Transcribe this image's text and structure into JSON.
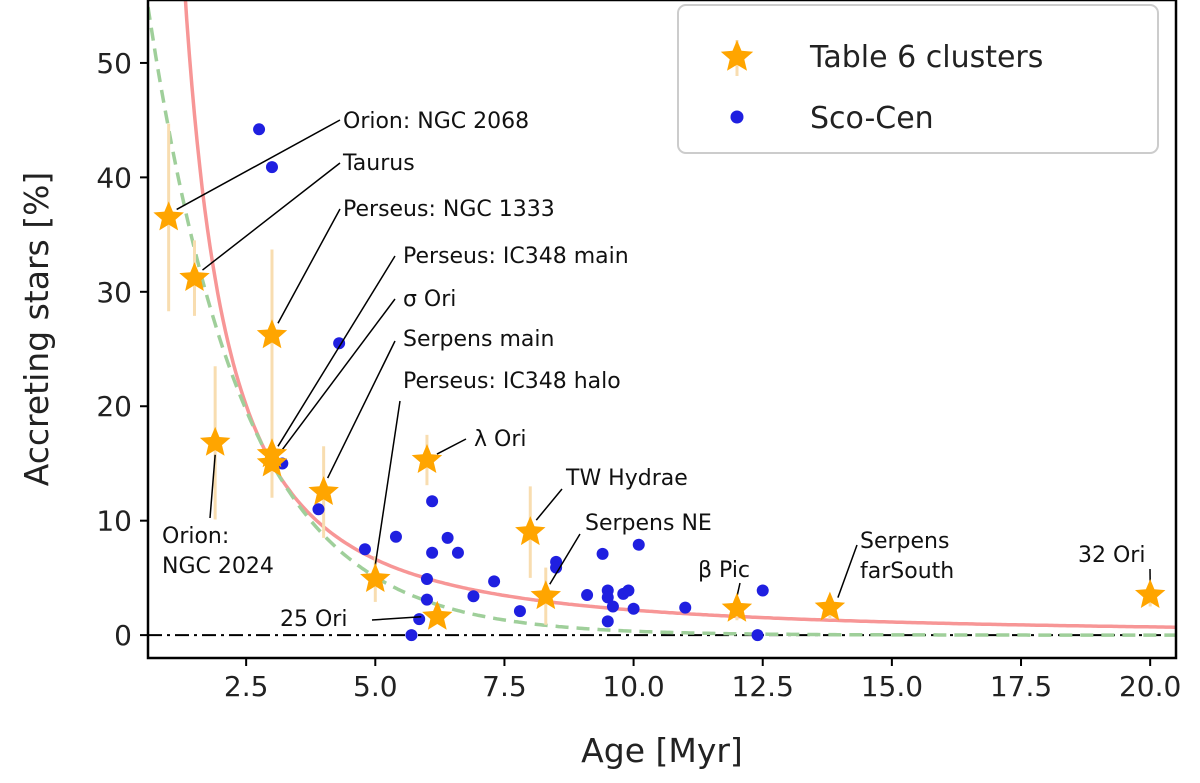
{
  "chart_data": {
    "type": "scatter",
    "xlabel": "Age [Myr]",
    "ylabel": "Accreting stars [%]",
    "xlim": [
      0.6,
      20.5
    ],
    "ylim": [
      -2,
      55.5
    ],
    "xticks": [
      "2.5",
      "5.0",
      "7.5",
      "10.0",
      "12.5",
      "15.0",
      "17.5",
      "20.0"
    ],
    "yticks": [
      "0",
      "10",
      "20",
      "30",
      "40",
      "50"
    ],
    "grid": false,
    "legend_position": "top-right",
    "legend": [
      {
        "label": "Table 6 clusters",
        "marker": "star",
        "color": "#FFA500"
      },
      {
        "label": "Sco-Cen",
        "marker": "circle",
        "color": "#1f1fe0"
      }
    ],
    "series": [
      {
        "name": "Table 6 clusters",
        "marker": "star",
        "color": "#FFA500",
        "errorbar_color": "#F8DDB0",
        "points": [
          {
            "x": 1.0,
            "y": 36.5,
            "err": 8.2,
            "label": "Orion: NGC 2068"
          },
          {
            "x": 1.5,
            "y": 31.2,
            "err": 3.3,
            "label": "Taurus"
          },
          {
            "x": 3.0,
            "y": 26.2,
            "err": 7.5,
            "label": "Perseus: NGC 1333"
          },
          {
            "x": 1.9,
            "y": 16.8,
            "err": 6.7,
            "label": "Orion: NGC 2024"
          },
          {
            "x": 3.0,
            "y": 15.8,
            "err": 3.5,
            "label": "Perseus: IC348 main"
          },
          {
            "x": 3.0,
            "y": 15.0,
            "err": 3.0,
            "label": "σ Ori"
          },
          {
            "x": 4.0,
            "y": 12.5,
            "err": 4.0,
            "label": "Serpens main"
          },
          {
            "x": 5.0,
            "y": 4.9,
            "err": 2.0,
            "label": "Perseus: IC348 halo"
          },
          {
            "x": 6.0,
            "y": 15.3,
            "err": 2.2,
            "label": "λ  Ori"
          },
          {
            "x": 6.2,
            "y": 1.6,
            "err": 0.6,
            "label": "25 Ori"
          },
          {
            "x": 8.0,
            "y": 9.0,
            "err": 4.0,
            "label": "TW Hydrae"
          },
          {
            "x": 8.3,
            "y": 3.4,
            "err": 2.5,
            "label": "Serpens NE"
          },
          {
            "x": 12.0,
            "y": 2.3,
            "err": 1.0,
            "label": "β Pic"
          },
          {
            "x": 13.8,
            "y": 2.4,
            "err": 1.0,
            "label": "Serpens farSouth"
          },
          {
            "x": 20.0,
            "y": 3.5,
            "err": 1.0,
            "label": "32 Ori"
          }
        ]
      },
      {
        "name": "Sco-Cen",
        "marker": "circle",
        "color": "#1f1fe0",
        "points": [
          {
            "x": 2.75,
            "y": 44.2
          },
          {
            "x": 3.0,
            "y": 40.9
          },
          {
            "x": 4.3,
            "y": 25.5
          },
          {
            "x": 3.2,
            "y": 15.0
          },
          {
            "x": 3.9,
            "y": 11.0
          },
          {
            "x": 4.8,
            "y": 7.5
          },
          {
            "x": 5.4,
            "y": 8.6
          },
          {
            "x": 6.1,
            "y": 11.7
          },
          {
            "x": 6.4,
            "y": 8.5
          },
          {
            "x": 6.1,
            "y": 7.2
          },
          {
            "x": 6.6,
            "y": 7.2
          },
          {
            "x": 6.0,
            "y": 4.9
          },
          {
            "x": 7.3,
            "y": 4.7
          },
          {
            "x": 6.9,
            "y": 3.4
          },
          {
            "x": 6.0,
            "y": 3.1
          },
          {
            "x": 5.85,
            "y": 1.4
          },
          {
            "x": 5.7,
            "y": 0.0
          },
          {
            "x": 7.8,
            "y": 2.1
          },
          {
            "x": 8.5,
            "y": 6.4
          },
          {
            "x": 8.5,
            "y": 5.9
          },
          {
            "x": 9.1,
            "y": 3.5
          },
          {
            "x": 9.4,
            "y": 7.1
          },
          {
            "x": 9.5,
            "y": 3.9
          },
          {
            "x": 9.5,
            "y": 3.3
          },
          {
            "x": 9.6,
            "y": 2.5
          },
          {
            "x": 9.5,
            "y": 1.2
          },
          {
            "x": 9.8,
            "y": 3.6
          },
          {
            "x": 9.9,
            "y": 3.9
          },
          {
            "x": 10.0,
            "y": 2.3
          },
          {
            "x": 10.1,
            "y": 7.9
          },
          {
            "x": 11.0,
            "y": 2.4
          },
          {
            "x": 12.5,
            "y": 3.9
          },
          {
            "x": 12.4,
            "y": 0.0
          }
        ]
      }
    ],
    "curves": [
      {
        "style": "solid",
        "color": "#F79696"
      },
      {
        "style": "dashed",
        "color": "#9FCF9A"
      }
    ],
    "reference_line": {
      "y": 0,
      "style": "dashdot",
      "color": "#000000"
    }
  }
}
